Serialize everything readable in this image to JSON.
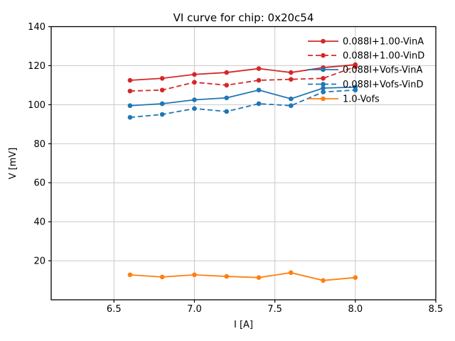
{
  "chart_data": {
    "type": "line",
    "title": "VI curve for chip: 0x20c54",
    "xlabel": "I [A]",
    "ylabel": "V [mV]",
    "xlim": [
      6.11,
      8.5
    ],
    "ylim": [
      0,
      140
    ],
    "xticks": [
      6.5,
      7.0,
      7.5,
      8.0,
      8.5
    ],
    "xtick_labels": [
      "6.5",
      "7.0",
      "7.5",
      "8.0",
      "8.5"
    ],
    "yticks": [
      20,
      40,
      60,
      80,
      100,
      120,
      140
    ],
    "ytick_labels": [
      "20",
      "40",
      "60",
      "80",
      "100",
      "120",
      "140"
    ],
    "grid": true,
    "legend_position": "upper right",
    "x": [
      6.6,
      6.8,
      7.0,
      7.2,
      7.4,
      7.6,
      7.8,
      8.0
    ],
    "series": [
      {
        "name": "0.088I+1.00-VinA",
        "color": "#d62728",
        "style": "solid",
        "values": [
          112.5,
          113.5,
          115.5,
          116.5,
          118.5,
          116.5,
          119.0,
          120.5
        ]
      },
      {
        "name": "0.088I+1.00-VinD",
        "color": "#d62728",
        "style": "dashed",
        "values": [
          107.0,
          107.5,
          111.5,
          110.0,
          112.5,
          113.0,
          113.5,
          119.5
        ]
      },
      {
        "name": "0.088I+Vofs-VinA",
        "color": "#1f77b4",
        "style": "solid",
        "values": [
          99.5,
          100.5,
          102.5,
          103.5,
          107.5,
          103.0,
          108.5,
          109.0
        ]
      },
      {
        "name": "0.088I+Vofs-VinD",
        "color": "#1f77b4",
        "style": "dashed",
        "values": [
          93.5,
          95.0,
          98.0,
          96.5,
          100.5,
          99.5,
          106.5,
          107.5
        ]
      },
      {
        "name": "1.0-Vofs",
        "color": "#ff7f0e",
        "style": "solid",
        "values": [
          12.8,
          11.7,
          12.8,
          12.0,
          11.4,
          13.9,
          9.9,
          11.4
        ]
      }
    ],
    "colors": {
      "grid": "#c9c9c9",
      "spine": "#000000",
      "background": "#ffffff"
    }
  }
}
